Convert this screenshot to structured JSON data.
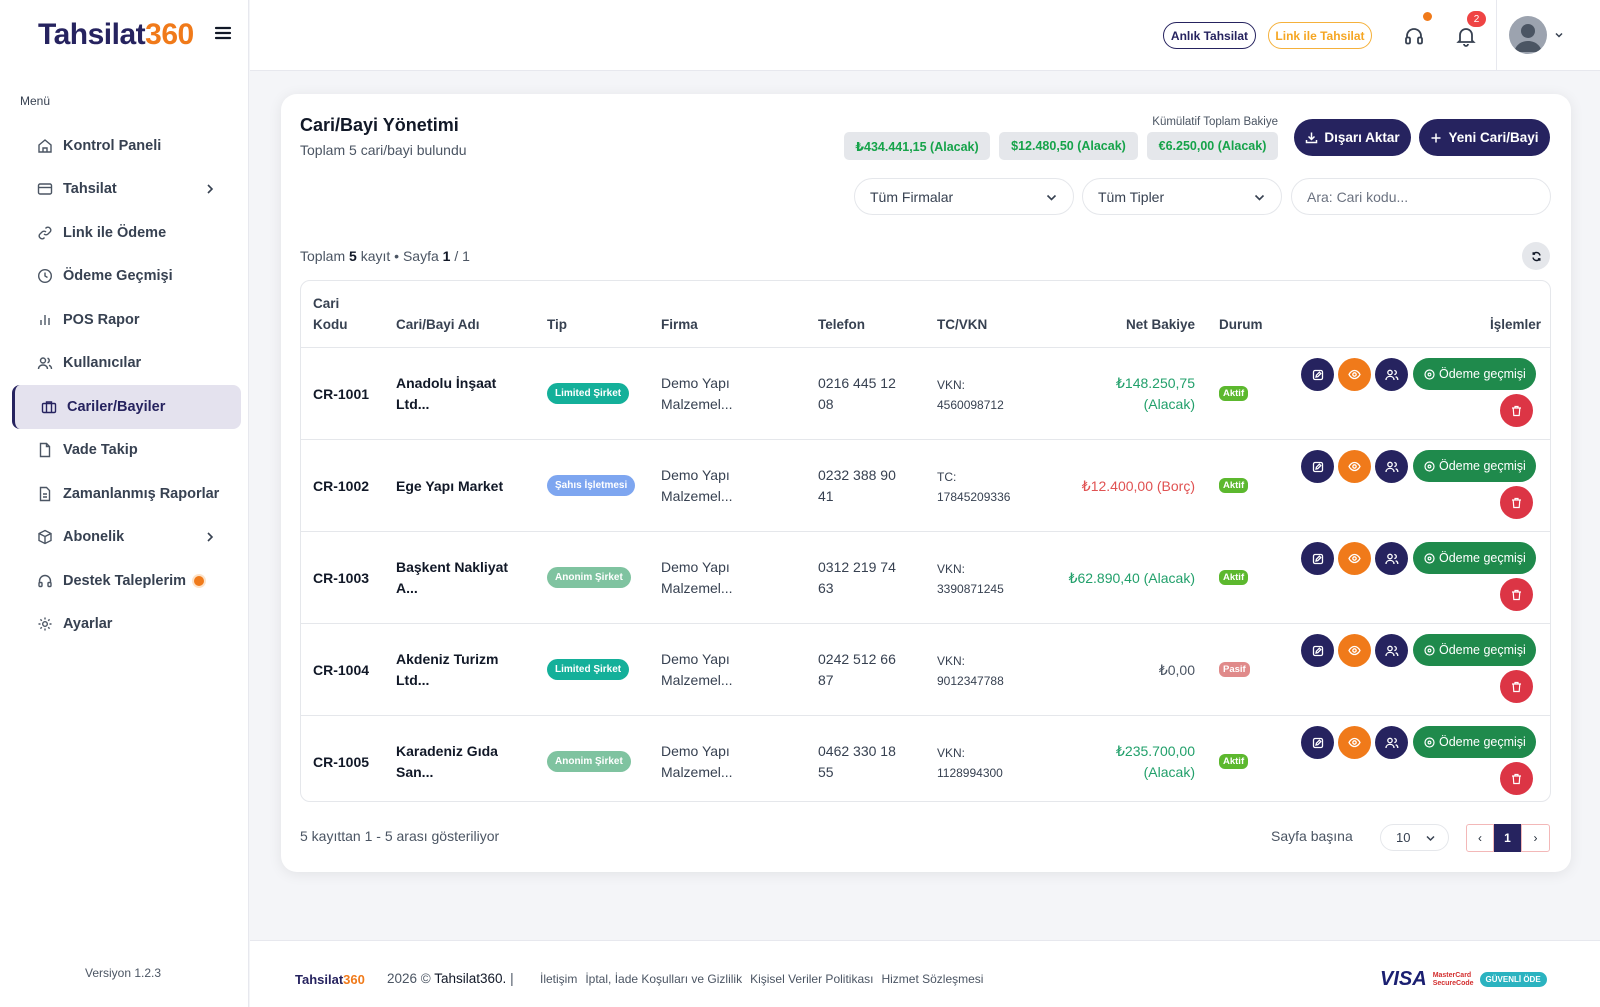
{
  "sidebar": {
    "logo_text": "Tahsilat",
    "logo_accent": "360",
    "menu_title": "Menü",
    "items": [
      {
        "label": "Kontrol Paneli",
        "icon": "home-icon"
      },
      {
        "label": "Tahsilat",
        "icon": "credit-card-icon",
        "has_submenu": true
      },
      {
        "label": "Link ile Ödeme",
        "icon": "link-icon"
      },
      {
        "label": "Ödeme Geçmişi",
        "icon": "clock-icon"
      },
      {
        "label": "POS Rapor",
        "icon": "bar-chart-icon"
      },
      {
        "label": "Kullanıcılar",
        "icon": "users-icon"
      },
      {
        "label": "Cariler/Bayiler",
        "icon": "briefcase-icon",
        "active": true
      },
      {
        "label": "Vade Takip",
        "icon": "file-icon"
      },
      {
        "label": "Zamanlanmış Raporlar",
        "icon": "file-text-icon"
      },
      {
        "label": "Abonelik",
        "icon": "box-icon",
        "has_submenu": true
      },
      {
        "label": "Destek Taleplerim",
        "icon": "headset-icon",
        "has_dot": true
      },
      {
        "label": "Ayarlar",
        "icon": "gear-icon"
      }
    ],
    "version": "Versiyon 1.2.3"
  },
  "header": {
    "instant_button": "Anlık Tahsilat",
    "link_button": "Link ile Tahsilat",
    "notification_count": "2"
  },
  "page": {
    "title": "Cari/Bayi Yönetimi",
    "subtitle": "Toplam 5 cari/bayi bulundu",
    "cumulative_label": "Kümülatif Toplam Bakiye",
    "balances": [
      "₺434.441,15 (Alacak)",
      "$12.480,50 (Alacak)",
      "€6.250,00 (Alacak)"
    ],
    "export_button": "Dışarı Aktar",
    "new_button": "Yeni Cari/Bayi",
    "filter_company": "Tüm Firmalar",
    "filter_type": "Tüm Tipler",
    "search_placeholder": "Ara: Cari kodu...",
    "summary": {
      "prefix": "Toplam",
      "count": "5",
      "mid": "kayıt • Sayfa",
      "page": "1",
      "suffix": "/ 1"
    }
  },
  "table": {
    "headers": {
      "code_1": "Cari",
      "code_2": "Kodu",
      "name": "Cari/Bayi Adı",
      "type": "Tip",
      "company": "Firma",
      "phone": "Telefon",
      "tax": "TC/VKN",
      "balance": "Net Bakiye",
      "status": "Durum",
      "actions": "İşlemler"
    },
    "history_label": "Ödeme geçmişi",
    "rows": [
      {
        "code": "CR-1001",
        "name_1": "Anadolu İnşaat",
        "name_2": "Ltd...",
        "type": "Limited Şirket",
        "type_color": "#14b09a",
        "company_1": "Demo Yapı",
        "company_2": "Malzemel...",
        "phone_1": "0216 445 12",
        "phone_2": "08",
        "tax_label": "VKN:",
        "tax_no": "4560098712",
        "balance_1": "₺148.250,75",
        "balance_2": "(Alacak)",
        "balance_kind": "green",
        "status": "Aktif",
        "status_color": "#5cb82e"
      },
      {
        "code": "CR-1002",
        "name_1": "Ege Yapı Market",
        "name_2": "",
        "type": "Şahıs İşletmesi",
        "type_color": "#7ea6f0",
        "company_1": "Demo Yapı",
        "company_2": "Malzemel...",
        "phone_1": "0232 388 90",
        "phone_2": "41",
        "tax_label": "TC:",
        "tax_no": "17845209336",
        "balance_1": "₺12.400,00 (Borç)",
        "balance_2": "",
        "balance_kind": "red",
        "status": "Aktif",
        "status_color": "#5cb82e"
      },
      {
        "code": "CR-1003",
        "name_1": "Başkent Nakliyat",
        "name_2": "A...",
        "type": "Anonim Şirket",
        "type_color": "#7fc3a0",
        "company_1": "Demo Yapı",
        "company_2": "Malzemel...",
        "phone_1": "0312 219 74",
        "phone_2": "63",
        "tax_label": "VKN:",
        "tax_no": "3390871245",
        "balance_1": "₺62.890,40 (Alacak)",
        "balance_2": "",
        "balance_kind": "green",
        "status": "Aktif",
        "status_color": "#5cb82e"
      },
      {
        "code": "CR-1004",
        "name_1": "Akdeniz Turizm",
        "name_2": "Ltd...",
        "type": "Limited Şirket",
        "type_color": "#14b09a",
        "company_1": "Demo Yapı",
        "company_2": "Malzemel...",
        "phone_1": "0242 512 66",
        "phone_2": "87",
        "tax_label": "VKN:",
        "tax_no": "9012347788",
        "balance_1": "₺0,00",
        "balance_2": "",
        "balance_kind": "gray",
        "status": "Pasif",
        "status_color": "#e08a8a"
      },
      {
        "code": "CR-1005",
        "name_1": "Karadeniz Gıda",
        "name_2": "San...",
        "type": "Anonim Şirket",
        "type_color": "#7fc3a0",
        "company_1": "Demo Yapı",
        "company_2": "Malzemel...",
        "phone_1": "0462 330 18",
        "phone_2": "55",
        "tax_label": "VKN:",
        "tax_no": "1128994300",
        "balance_1": "₺235.700,00",
        "balance_2": "(Alacak)",
        "balance_kind": "green",
        "status": "Aktif",
        "status_color": "#5cb82e"
      }
    ]
  },
  "pagination": {
    "info": "5 kayıttan 1 - 5 arası gösteriliyor",
    "per_page_label": "Sayfa başına",
    "per_page": "10",
    "prev": "‹",
    "current": "1",
    "next": "›"
  },
  "footer": {
    "logo_text": "Tahsilat",
    "logo_accent": "360",
    "year": "2026 ©",
    "brand": "Tahsilat360.",
    "sep": "|",
    "links": [
      "İletişim",
      "İptal, İade Koşulları ve Gizlilik",
      "Kişisel Veriler Politikası",
      "Hizmet Sözleşmesi"
    ],
    "pay_visa": "VISA",
    "pay_mc_1": "MasterCard",
    "pay_mc_2": "SecureCode",
    "pay_secure": "GÜVENLİ ÖDE"
  }
}
